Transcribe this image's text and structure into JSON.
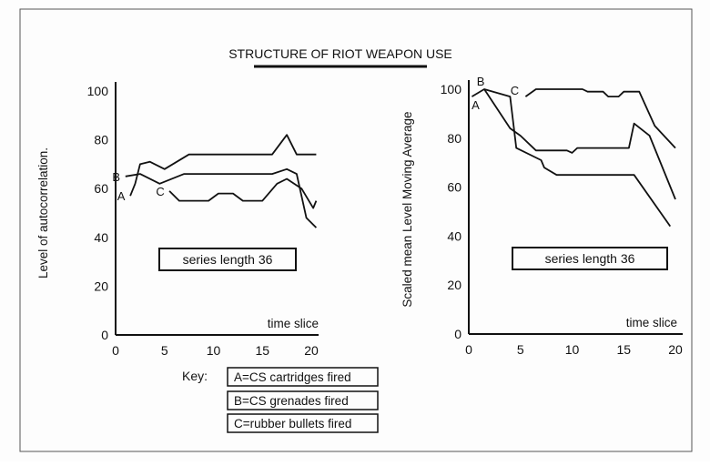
{
  "title": "STRUCTURE OF RIOT WEAPON USE",
  "key": {
    "label": "Key:",
    "entries": [
      "A=CS cartridges fired",
      "B=CS grenades fired",
      "C=rubber bullets fired"
    ]
  },
  "chart_data": [
    {
      "type": "line",
      "ylabel": "Level of autocorrelation.",
      "xlabel": "time slice",
      "annotation": "series length 36",
      "xlim": [
        0,
        20
      ],
      "ylim": [
        0,
        100
      ],
      "xticks": [
        "0",
        "5",
        "10",
        "15",
        "20"
      ],
      "yticks": [
        "0",
        "20",
        "40",
        "60",
        "80",
        "100"
      ],
      "series": [
        {
          "name": "A",
          "x": [
            1.5,
            2,
            2.5,
            3.5,
            5,
            7.5,
            16,
            17.5,
            18.5,
            20.5
          ],
          "y": [
            57,
            62,
            70,
            71,
            68,
            74,
            74,
            82,
            74,
            74
          ]
        },
        {
          "name": "B",
          "x": [
            1,
            2.5,
            4.5,
            7,
            16,
            17.5,
            18.5,
            19.5,
            20.5
          ],
          "y": [
            65,
            66,
            62,
            66,
            66,
            68,
            66,
            48,
            44
          ]
        },
        {
          "name": "C",
          "x": [
            5.5,
            6.5,
            9.5,
            10.5,
            12,
            13,
            15,
            16.5,
            17.5,
            19,
            20.2,
            20.5
          ],
          "y": [
            59,
            55,
            55,
            58,
            58,
            55,
            55,
            62,
            64,
            60,
            52,
            55
          ]
        }
      ]
    },
    {
      "type": "line",
      "ylabel": "Scaled mean Level Moving Average",
      "xlabel": "time slice",
      "annotation": "series length 36",
      "xlim": [
        0,
        20
      ],
      "ylim": [
        0,
        100
      ],
      "xticks": [
        "0",
        "5",
        "10",
        "15",
        "20"
      ],
      "yticks": [
        "0",
        "20",
        "40",
        "60",
        "80",
        "100"
      ],
      "series": [
        {
          "name": "A",
          "x": [
            0.3,
            1.5,
            4,
            4.6,
            7,
            7.3,
            8.5,
            16,
            19.5
          ],
          "y": [
            97,
            100,
            97,
            76,
            71,
            68,
            65,
            65,
            44
          ]
        },
        {
          "name": "B",
          "x": [
            1.5,
            4,
            5,
            6.5,
            9.5,
            10,
            10.5,
            15.5,
            16,
            17.5,
            20
          ],
          "y": [
            100,
            84,
            81,
            75,
            75,
            74,
            76,
            76,
            86,
            81,
            55
          ]
        },
        {
          "name": "C",
          "x": [
            5.5,
            6.5,
            11,
            11.5,
            13,
            13.5,
            14.5,
            15,
            16.5,
            18,
            20
          ],
          "y": [
            97,
            100,
            100,
            99,
            99,
            97,
            97,
            99,
            99,
            85,
            76
          ]
        }
      ]
    }
  ]
}
